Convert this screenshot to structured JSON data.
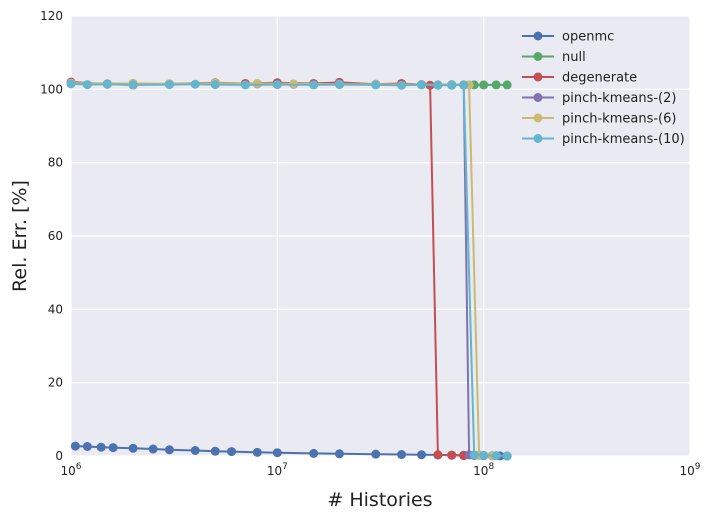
{
  "chart_data": {
    "type": "line",
    "xlabel": "# Histories",
    "ylabel": "Rel. Err. [%]",
    "xscale": "log",
    "xlim": [
      1000000,
      1000000000
    ],
    "ylim": [
      0,
      120
    ],
    "x_ticks": [
      {
        "value": 1000000,
        "base": "10",
        "exp": "6"
      },
      {
        "value": 10000000,
        "base": "10",
        "exp": "7"
      },
      {
        "value": 100000000,
        "base": "10",
        "exp": "8"
      },
      {
        "value": 1000000000,
        "base": "10",
        "exp": "9"
      }
    ],
    "y_ticks": [
      "0",
      "20",
      "40",
      "60",
      "80",
      "100",
      "120"
    ],
    "grid": true,
    "legend_position": "top-right",
    "background": "#EAEAF2",
    "series": [
      {
        "name": "openmc",
        "color": "#4C72B0",
        "x": [
          1050000,
          1200000,
          1400000,
          1600000,
          2000000,
          2500000,
          3000000,
          4000000,
          5000000,
          6000000,
          8000000,
          10000000,
          15000000,
          20000000,
          30000000,
          40000000,
          50000000,
          60000000,
          70000000,
          80000000,
          90000000,
          100000000,
          110000000,
          120000000,
          130000000
        ],
        "y": [
          2.7,
          2.6,
          2.4,
          2.3,
          2.1,
          1.9,
          1.7,
          1.5,
          1.3,
          1.2,
          1.0,
          0.9,
          0.7,
          0.6,
          0.5,
          0.4,
          0.35,
          0.3,
          0.25,
          0.2,
          0.15,
          0.1,
          0.05,
          0.02,
          0.0
        ]
      },
      {
        "name": "null",
        "color": "#55A868",
        "x": [
          1000000,
          1500000,
          2000000,
          3000000,
          5000000,
          7000000,
          10000000,
          15000000,
          20000000,
          30000000,
          40000000,
          50000000,
          60000000,
          70000000,
          80000000,
          90000000,
          100000000,
          115000000,
          130000000
        ],
        "y": [
          101.8,
          101.5,
          101.6,
          101.4,
          101.7,
          101.5,
          101.6,
          101.4,
          101.5,
          101.3,
          101.4,
          101.3,
          101.2,
          101.3,
          101.2,
          101.2,
          101.2,
          101.2,
          101.2
        ]
      },
      {
        "name": "degenerate",
        "color": "#C44E52",
        "x": [
          1000000,
          1500000,
          2000000,
          3000000,
          5000000,
          7000000,
          10000000,
          15000000,
          20000000,
          30000000,
          40000000,
          50000000,
          55000000,
          60000000,
          70000000,
          80000000
        ],
        "y": [
          102.0,
          101.4,
          101.2,
          101.5,
          101.8,
          101.6,
          101.8,
          101.6,
          101.9,
          101.4,
          101.6,
          101.3,
          101.1,
          0.3,
          0.2,
          0.1
        ]
      },
      {
        "name": "pinch-kmeans-(2)",
        "color": "#8172B2",
        "x": [
          1000000,
          2000000,
          3000000,
          5000000,
          8000000,
          12000000,
          20000000,
          30000000,
          50000000,
          70000000,
          80000000,
          85000000,
          95000000,
          110000000
        ],
        "y": [
          101.6,
          101.5,
          101.4,
          101.6,
          101.5,
          101.4,
          101.5,
          101.3,
          101.3,
          101.2,
          101.2,
          0.3,
          0.2,
          0.1
        ]
      },
      {
        "name": "pinch-kmeans-(6)",
        "color": "#CCB974",
        "x": [
          1000000,
          2000000,
          3000000,
          5000000,
          8000000,
          12000000,
          20000000,
          30000000,
          50000000,
          70000000,
          85000000,
          95000000,
          110000000
        ],
        "y": [
          101.7,
          101.6,
          101.5,
          101.7,
          101.6,
          101.5,
          101.4,
          101.4,
          101.3,
          101.2,
          101.2,
          0.3,
          0.1
        ]
      },
      {
        "name": "pinch-kmeans-(10)",
        "color": "#64B5CD",
        "x": [
          1000000,
          1200000,
          1500000,
          2000000,
          3000000,
          4000000,
          5000000,
          7000000,
          10000000,
          15000000,
          20000000,
          30000000,
          40000000,
          50000000,
          60000000,
          70000000,
          80000000,
          90000000,
          100000000,
          115000000,
          130000000
        ],
        "y": [
          101.5,
          101.3,
          101.4,
          101.2,
          101.3,
          101.4,
          101.3,
          101.2,
          101.3,
          101.2,
          101.3,
          101.2,
          101.1,
          101.2,
          101.1,
          101.1,
          101.2,
          0.3,
          0.2,
          0.1,
          0.0
        ]
      }
    ]
  }
}
